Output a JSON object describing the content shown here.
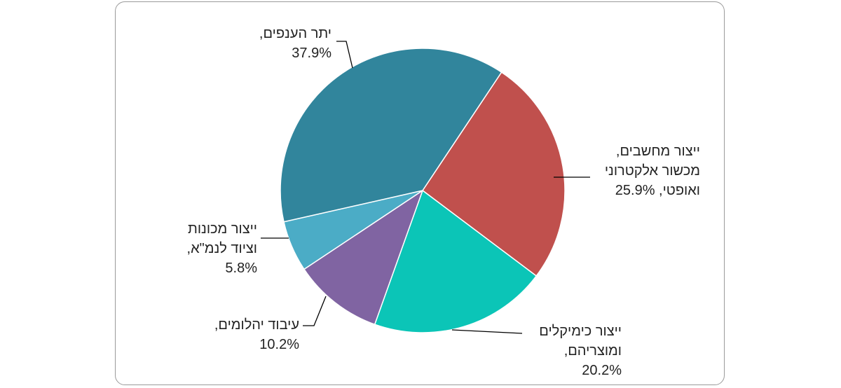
{
  "chart_data": {
    "type": "pie",
    "title": "",
    "slices": [
      {
        "name": "ייצור מחשבים, מכשור אלקטרוני ואופטי",
        "label_lines": [
          "ייצור מחשבים,",
          "מכשור אלקטרוני",
          "ואופטי, 25.9%"
        ],
        "value": 25.9,
        "color": "#c0504d"
      },
      {
        "name": "ייצור כימיקלים ומוצריהם",
        "label_lines": [
          "ייצור כימיקלים",
          "ומוצריהם,",
          "20.2%"
        ],
        "value": 20.2,
        "color": "#0bc5b7"
      },
      {
        "name": "עיבוד יהלומים",
        "label_lines": [
          "עיבוד יהלומים,",
          "10.2%"
        ],
        "value": 10.2,
        "color": "#8064a2"
      },
      {
        "name": "ייצור מכונות וציוד לנמ\"א",
        "label_lines": [
          "ייצור מכונות",
          "וציוד לנמ\"א,",
          "5.8%"
        ],
        "value": 5.8,
        "color": "#4bacc6"
      },
      {
        "name": "יתר הענפים",
        "label_lines": [
          "יתר הענפים,",
          "37.9%"
        ],
        "value": 37.9,
        "color": "#31859c"
      }
    ],
    "legend": "none",
    "units": "%"
  }
}
